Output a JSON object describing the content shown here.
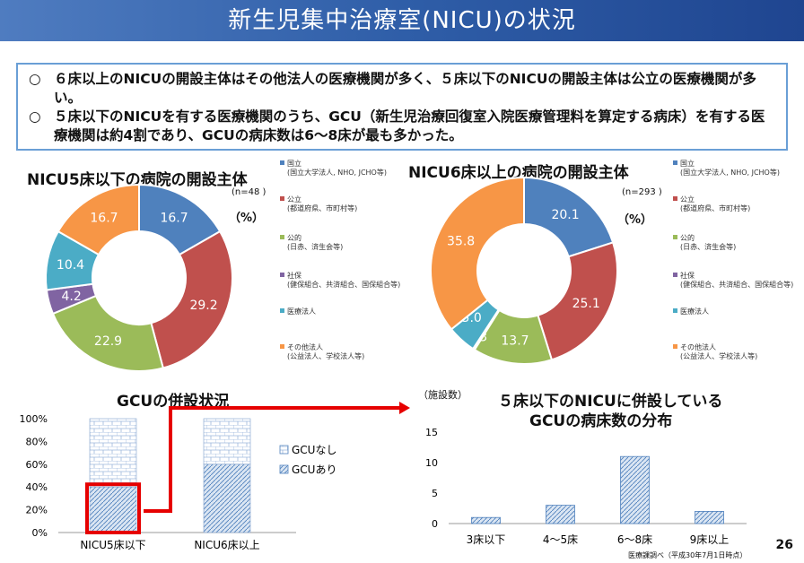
{
  "title": "新生児集中治療室(NICU)の状況",
  "summary": [
    {
      "bullet": "○",
      "text": "６床以上のNICUの開設主体はその他法人の医療機関が多く、５床以下のNICUの開設主体は公立の医療機関が多い。"
    },
    {
      "bullet": "○",
      "text": "５床以下のNICUを有する医療機関のうち、GCU（新生児治療回復室入院医療管理料を算定する病床）を有する医療機関は約4割であり、GCUの病床数は6～8床が最も多かった。"
    }
  ],
  "colors": {
    "national": "#4f81bd",
    "public": "#c0504d",
    "quasi": "#9bbb59",
    "social": "#8064a2",
    "medical": "#4bacc6",
    "other": "#f79646"
  },
  "legend": [
    {
      "label": "国立",
      "sub": "(国立大学法人, NHO, JCHO等)"
    },
    {
      "label": "公立",
      "sub": "(都道府県、市町村等)"
    },
    {
      "label": "公的",
      "sub": "(日赤、済生会等)"
    },
    {
      "label": "社保",
      "sub": "(健保組合、共済組合、国保組合等)"
    },
    {
      "label": "医療法人",
      "sub": ""
    },
    {
      "label": "その他法人",
      "sub": "(公益法人、学校法人等)"
    }
  ],
  "chart_data": [
    {
      "type": "pie",
      "donut": true,
      "title": "NICU5床以下の病院の開設主体",
      "n_label": "(n=48 )",
      "unit_label": "（%）",
      "categories": [
        "国立",
        "公立",
        "公的",
        "社保",
        "医療法人",
        "その他法人"
      ],
      "values": [
        16.7,
        29.2,
        22.9,
        4.2,
        10.4,
        16.7
      ],
      "labels": [
        "16.7",
        "29.2",
        "22.9",
        "4.2",
        "10.4",
        "16.7"
      ]
    },
    {
      "type": "pie",
      "donut": true,
      "title": "NICU6床以上の病院の開設主体",
      "n_label": "(n=293 )",
      "unit_label": "（%）",
      "categories": [
        "国立",
        "公立",
        "公的",
        "社保",
        "医療法人",
        "その他法人"
      ],
      "values": [
        20.1,
        25.1,
        13.7,
        0.3,
        5.0,
        35.8
      ],
      "labels": [
        "20.1",
        "25.1",
        "13.7",
        "0.3",
        "5.0",
        "35.8"
      ]
    },
    {
      "type": "bar",
      "stacked": true,
      "title": "GCUの併設状況",
      "categories": [
        "NICU5床以下",
        "NICU6床以上"
      ],
      "series": [
        {
          "name": "GCUあり",
          "values": [
            40,
            60
          ]
        },
        {
          "name": "GCUなし",
          "values": [
            60,
            40
          ]
        }
      ],
      "ylim": [
        0,
        100
      ],
      "yticks": [
        "0%",
        "20%",
        "40%",
        "60%",
        "80%",
        "100%"
      ]
    },
    {
      "type": "bar",
      "title_line1": "５床以下のNICUに併設している",
      "title_line2": "GCUの病床数の分布",
      "ylabel": "（施設数）",
      "categories": [
        "3床以下",
        "4～5床",
        "6～8床",
        "9床以上"
      ],
      "values": [
        1,
        3,
        11,
        2
      ],
      "ylim": [
        0,
        15
      ],
      "yticks": [
        "0",
        "5",
        "10",
        "15"
      ]
    }
  ],
  "page_number": "26",
  "source": "医療課調べ（平成30年7月1日時点）"
}
